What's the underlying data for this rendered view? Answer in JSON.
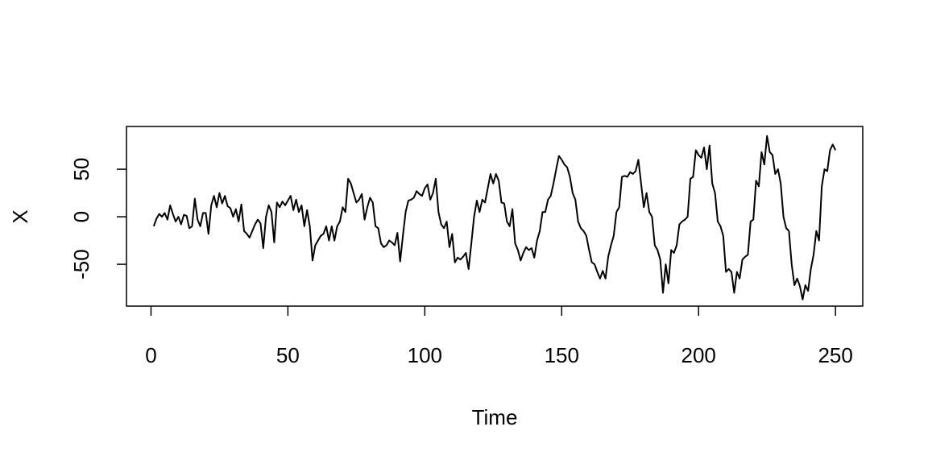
{
  "chart_data": {
    "type": "line",
    "x_label": "Time",
    "y_label": "X",
    "color": "#000000",
    "x": [
      1,
      2,
      3,
      4,
      5,
      6,
      7,
      8,
      9,
      10,
      11,
      12,
      13,
      14,
      15,
      16,
      17,
      18,
      19,
      20,
      21,
      22,
      23,
      24,
      25,
      26,
      27,
      28,
      29,
      30,
      31,
      32,
      33,
      34,
      35,
      36,
      37,
      38,
      39,
      40,
      41,
      42,
      43,
      44,
      45,
      46,
      47,
      48,
      49,
      50,
      51,
      52,
      53,
      54,
      55,
      56,
      57,
      58,
      59,
      60,
      61,
      62,
      63,
      64,
      65,
      66,
      67,
      68,
      69,
      70,
      71,
      72,
      73,
      74,
      75,
      76,
      77,
      78,
      79,
      80,
      81,
      82,
      83,
      84,
      85,
      86,
      87,
      88,
      89,
      90,
      91,
      92,
      93,
      94,
      95,
      96,
      97,
      98,
      99,
      100,
      101,
      102,
      103,
      104,
      105,
      106,
      107,
      108,
      109,
      110,
      111,
      112,
      113,
      114,
      115,
      116,
      117,
      118,
      119,
      120,
      121,
      122,
      123,
      124,
      125,
      126,
      127,
      128,
      129,
      130,
      131,
      132,
      133,
      134,
      135,
      136,
      137,
      138,
      139,
      140,
      141,
      142,
      143,
      144,
      145,
      146,
      147,
      148,
      149,
      150,
      151,
      152,
      153,
      154,
      155,
      156,
      157,
      158,
      159,
      160,
      161,
      162,
      163,
      164,
      165,
      166,
      167,
      168,
      169,
      170,
      171,
      172,
      173,
      174,
      175,
      176,
      177,
      178,
      179,
      180,
      181,
      182,
      183,
      184,
      185,
      186,
      187,
      188,
      189,
      190,
      191,
      192,
      193,
      194,
      195,
      196,
      197,
      198,
      199,
      200,
      201,
      202,
      203,
      204,
      205,
      206,
      207,
      208,
      209,
      210,
      211,
      212,
      213,
      214,
      215,
      216,
      217,
      218,
      219,
      220,
      221,
      222,
      223,
      224,
      225,
      226,
      227,
      228,
      229,
      230,
      231,
      232,
      233,
      234,
      235,
      236,
      237,
      238,
      239,
      240,
      241,
      242,
      243,
      244,
      245,
      246,
      247,
      248,
      249,
      250
    ],
    "values": [
      -10,
      -2,
      3,
      0,
      4,
      -3,
      12,
      3,
      -5,
      0,
      -8,
      2,
      1,
      -12,
      -10,
      19,
      -3,
      -10,
      4,
      4,
      -18,
      12,
      22,
      10,
      25,
      14,
      22,
      11,
      9,
      0,
      8,
      -5,
      13,
      -15,
      -18,
      -22,
      -15,
      -8,
      -3,
      -7,
      -33,
      0,
      12,
      5,
      -27,
      15,
      10,
      16,
      12,
      17,
      22,
      7,
      18,
      5,
      12,
      -10,
      7,
      -10,
      -46,
      -30,
      -25,
      -20,
      -18,
      -10,
      -25,
      -10,
      -25,
      -10,
      -5,
      10,
      5,
      40,
      35,
      25,
      15,
      18,
      24,
      -3,
      10,
      20,
      15,
      -10,
      -12,
      -28,
      -32,
      -30,
      -25,
      -27,
      -30,
      -17,
      -47,
      -20,
      5,
      17,
      18,
      20,
      27,
      24,
      22,
      30,
      34,
      18,
      25,
      40,
      5,
      -8,
      -12,
      -5,
      -32,
      -18,
      -48,
      -43,
      -45,
      -42,
      -38,
      -55,
      -28,
      0,
      17,
      5,
      18,
      15,
      30,
      45,
      35,
      45,
      38,
      15,
      14,
      -5,
      -10,
      8,
      -28,
      -35,
      -46,
      -38,
      -32,
      -35,
      -33,
      -43,
      -25,
      -15,
      5,
      5,
      18,
      22,
      35,
      50,
      64,
      60,
      55,
      52,
      42,
      25,
      18,
      -5,
      -12,
      -15,
      -20,
      -35,
      -48,
      -50,
      -58,
      -65,
      -57,
      -65,
      -42,
      -30,
      -20,
      5,
      10,
      42,
      43,
      42,
      47,
      45,
      48,
      60,
      35,
      10,
      25,
      5,
      0,
      -30,
      -35,
      -45,
      -80,
      -50,
      -70,
      -35,
      -38,
      -30,
      -8,
      -5,
      -3,
      0,
      40,
      42,
      70,
      65,
      62,
      73,
      50,
      75,
      35,
      25,
      -5,
      -10,
      -20,
      -58,
      -55,
      -58,
      -80,
      -58,
      -65,
      -45,
      -42,
      -40,
      -5,
      -3,
      38,
      32,
      68,
      55,
      85,
      68,
      65,
      45,
      50,
      35,
      0,
      -12,
      -15,
      -50,
      -72,
      -65,
      -73,
      -87,
      -72,
      -78,
      -55,
      -40,
      -15,
      -25,
      32,
      50,
      48,
      70,
      76,
      70
    ],
    "xlim": [
      -8.96,
      259.96
    ],
    "xticks": [
      0,
      50,
      100,
      150,
      200,
      250
    ],
    "ylim": [
      -94,
      95
    ],
    "yticks": [
      -50,
      0,
      50
    ]
  }
}
